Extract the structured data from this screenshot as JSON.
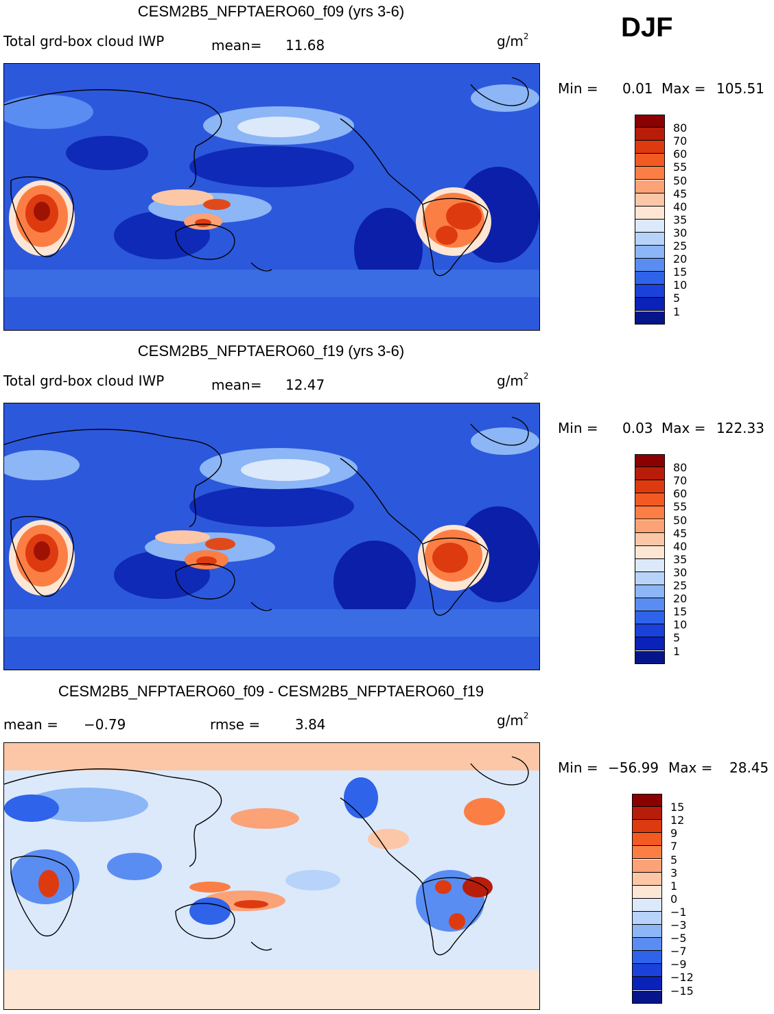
{
  "season": "DJF",
  "panels": [
    {
      "title": "CESM2B5_NFPTAERO60_f09 (yrs 3-6)",
      "variable": "Total grd-box cloud IWP",
      "stat1_label": "mean=",
      "stat1_value": "11.68",
      "stat2_label": "",
      "stat2_value": "",
      "units_base": "g/m",
      "units_exp": "2",
      "min_label": "Min =",
      "min_value": "0.01",
      "max_label": "Max =",
      "max_value": "105.51",
      "colorbar_labels": [
        "80",
        "70",
        "60",
        "55",
        "50",
        "45",
        "40",
        "35",
        "30",
        "25",
        "20",
        "15",
        "10",
        "5",
        "1"
      ],
      "colorbar_colors": [
        "#8b0000",
        "#b81d0a",
        "#de3a10",
        "#f25a22",
        "#fb7f45",
        "#fba276",
        "#fcc7a6",
        "#fde6d4",
        "#dce9fb",
        "#b8d3f9",
        "#8cb6f5",
        "#5a8df2",
        "#2e63ea",
        "#1a41d9",
        "#0b22b8",
        "#06168a"
      ]
    },
    {
      "title": "CESM2B5_NFPTAERO60_f19 (yrs 3-6)",
      "variable": "Total grd-box cloud IWP",
      "stat1_label": "mean=",
      "stat1_value": "12.47",
      "stat2_label": "",
      "stat2_value": "",
      "units_base": "g/m",
      "units_exp": "2",
      "min_label": "Min =",
      "min_value": "0.03",
      "max_label": "Max =",
      "max_value": "122.33",
      "colorbar_labels": [
        "80",
        "70",
        "60",
        "55",
        "50",
        "45",
        "40",
        "35",
        "30",
        "25",
        "20",
        "15",
        "10",
        "5",
        "1"
      ],
      "colorbar_colors": [
        "#8b0000",
        "#b81d0a",
        "#de3a10",
        "#f25a22",
        "#fb7f45",
        "#fba276",
        "#fcc7a6",
        "#fde6d4",
        "#dce9fb",
        "#b8d3f9",
        "#8cb6f5",
        "#5a8df2",
        "#2e63ea",
        "#1a41d9",
        "#0b22b8",
        "#06168a"
      ]
    },
    {
      "title": "CESM2B5_NFPTAERO60_f09 - CESM2B5_NFPTAERO60_f19",
      "variable": "",
      "stat1_label": "mean =",
      "stat1_value": "−0.79",
      "stat2_label": "rmse =",
      "stat2_value": "3.84",
      "units_base": "g/m",
      "units_exp": "2",
      "min_label": "Min =",
      "min_value": "−56.99",
      "max_label": "Max =",
      "max_value": "28.45",
      "colorbar_labels": [
        "15",
        "12",
        "9",
        "7",
        "5",
        "3",
        "1",
        "0",
        "−1",
        "−3",
        "−5",
        "−7",
        "−9",
        "−12",
        "−15"
      ],
      "colorbar_colors": [
        "#8b0000",
        "#b81d0a",
        "#de3a10",
        "#f25a22",
        "#fb7f45",
        "#fba276",
        "#fcc7a6",
        "#fde6d4",
        "#dce9fb",
        "#b8d3f9",
        "#8cb6f5",
        "#5a8df2",
        "#2e63ea",
        "#1a41d9",
        "#0b22b8",
        "#06168a"
      ]
    }
  ],
  "map_palette": {
    "ocean_deep": "#0b1fa8",
    "ocean_mid": "#2c58dc",
    "ocean_light": "#6f9af0",
    "storm_track": "#c9dbfb",
    "hot_land": "#e04a1a",
    "hot_core": "#9e1204",
    "diff_neutral": "#dce9fb",
    "diff_pos": "#f7b59a",
    "diff_neg": "#3f6ee6"
  }
}
